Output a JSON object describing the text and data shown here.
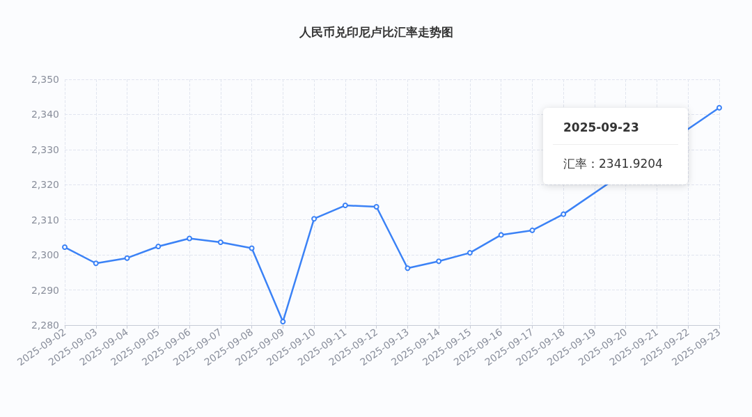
{
  "chart_data": {
    "type": "line",
    "title": "人民币兑印尼卢比汇率走势图",
    "categories": [
      "2025-09-02",
      "2025-09-03",
      "2025-09-04",
      "2025-09-05",
      "2025-09-06",
      "2025-09-07",
      "2025-09-08",
      "2025-09-09",
      "2025-09-10",
      "2025-09-11",
      "2025-09-12",
      "2025-09-13",
      "2025-09-14",
      "2025-09-15",
      "2025-09-16",
      "2025-09-17",
      "2025-09-18",
      "2025-09-19",
      "2025-09-20",
      "2025-09-21",
      "2025-09-22",
      "2025-09-23"
    ],
    "series": [
      {
        "color": "#3b82f6",
        "values": [
          2302.2,
          2297.6,
          2299.1,
          2302.4,
          2304.7,
          2303.6,
          2301.9,
          2281.0,
          2310.3,
          2314.1,
          2313.7,
          2296.2,
          2298.2,
          2300.6,
          2305.7,
          2307.0,
          2311.6,
          null,
          null,
          null,
          null,
          2341.9204
        ]
      }
    ],
    "ylim": [
      2280,
      2350
    ],
    "yticks": [
      {
        "value": 2280,
        "label": "2,280"
      },
      {
        "value": 2290,
        "label": "2,290"
      },
      {
        "value": 2300,
        "label": "2,300"
      },
      {
        "value": 2310,
        "label": "2,310"
      },
      {
        "value": 2320,
        "label": "2,320"
      },
      {
        "value": 2330,
        "label": "2,330"
      },
      {
        "value": 2340,
        "label": "2,340"
      },
      {
        "value": 2350,
        "label": "2,350"
      }
    ],
    "annotations": [
      "2025-09-23",
      "汇率：2341.9204"
    ],
    "grid": true,
    "marker": "circle",
    "line_style": "solid"
  }
}
